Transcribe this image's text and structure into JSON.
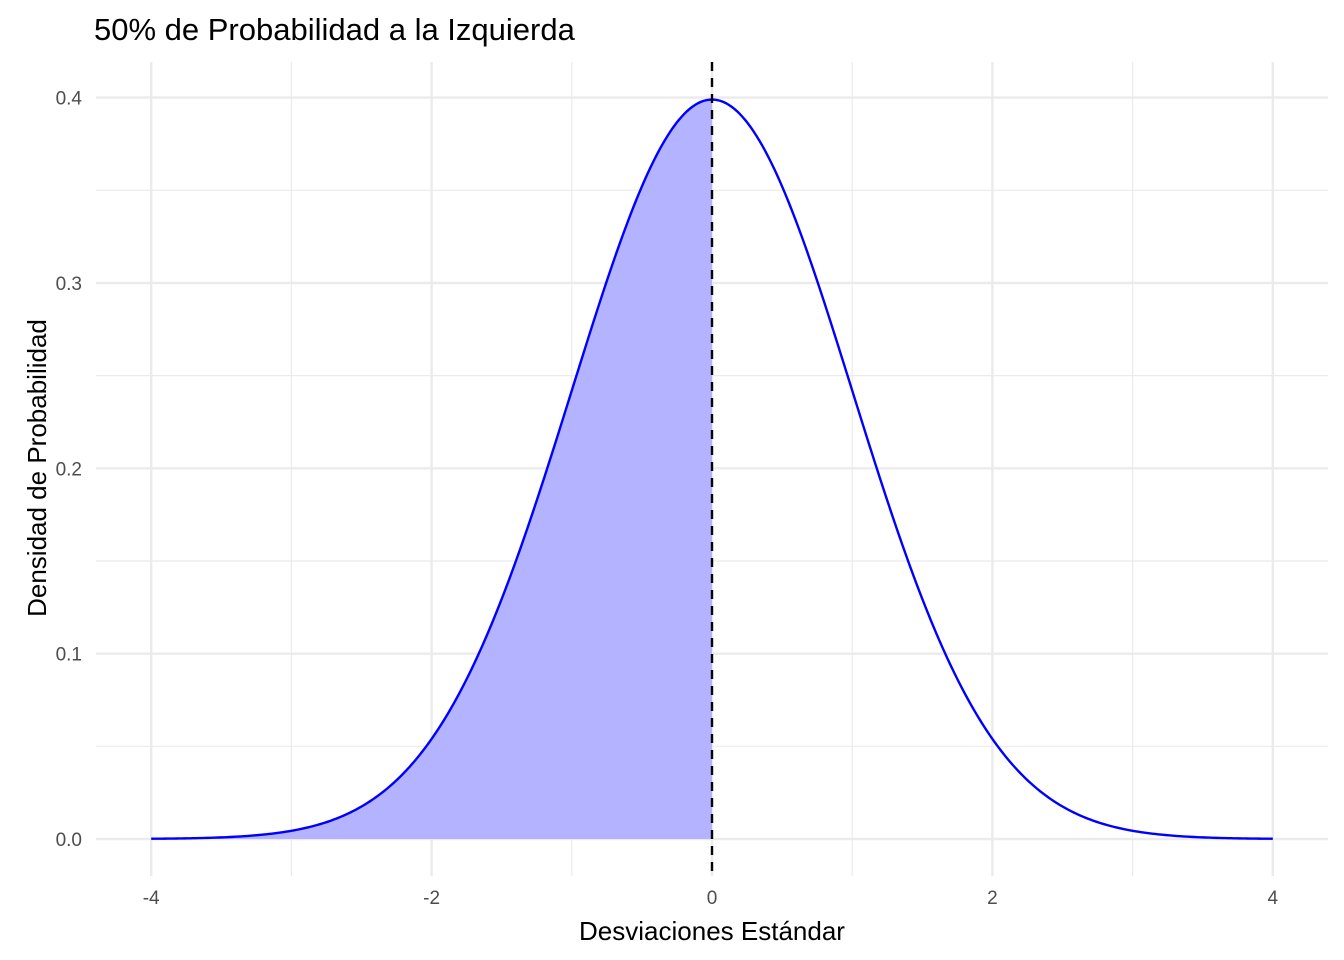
{
  "chart_data": {
    "type": "area",
    "title": "50% de Probabilidad a la Izquierda",
    "xlabel": "Desviaciones Estándar",
    "ylabel": "Densidad de Probabilidad",
    "xlim": [
      -4,
      4
    ],
    "ylim": [
      0,
      0.4
    ],
    "x_ticks": [
      -4,
      -2,
      0,
      2,
      4
    ],
    "y_ticks": [
      0.0,
      0.1,
      0.2,
      0.3,
      0.4
    ],
    "x_tick_labels": [
      "-4",
      "-2",
      "0",
      "2",
      "4"
    ],
    "y_tick_labels": [
      "0.0",
      "0.1",
      "0.2",
      "0.3",
      "0.4"
    ],
    "curve": {
      "x": [
        -4,
        -3.5,
        -3,
        -2.5,
        -2,
        -1.5,
        -1,
        -0.5,
        0,
        0.5,
        1,
        1.5,
        2,
        2.5,
        3,
        3.5,
        4
      ],
      "y": [
        0.0001,
        0.0009,
        0.0044,
        0.0175,
        0.054,
        0.1295,
        0.242,
        0.3521,
        0.3989,
        0.3521,
        0.242,
        0.1295,
        0.054,
        0.0175,
        0.0044,
        0.0009,
        0.0001
      ]
    },
    "shaded_region": {
      "from": -4,
      "to": 0
    },
    "reference_line": {
      "x": 0,
      "style": "dashed"
    },
    "grid": true,
    "colors": {
      "curve": "#0000ff",
      "fill": "#b3b3ff",
      "reference_line": "#000000",
      "grid": "#ebebeb"
    }
  }
}
